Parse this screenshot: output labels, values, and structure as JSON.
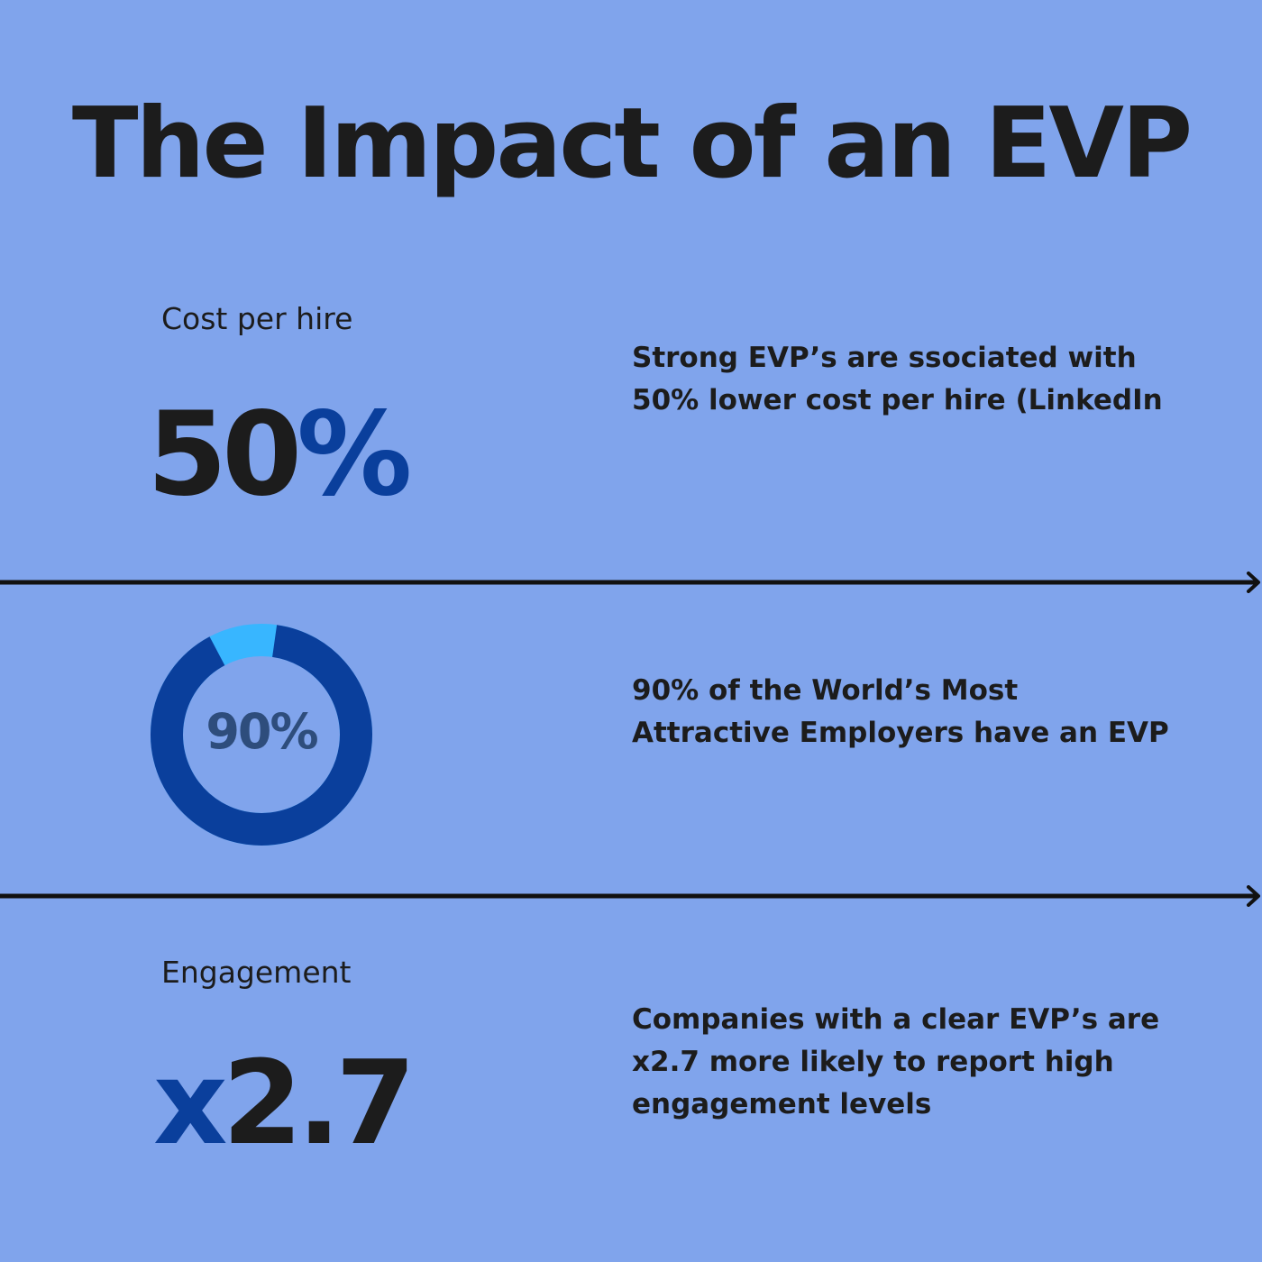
{
  "title": "The Impact of an EVP",
  "colors": {
    "background": "#80a4ec",
    "text": "#1c1c1c",
    "accent": "#0a3f9c",
    "donut_remainder": "#38b6ff",
    "donut_label": "#2e4d7c"
  },
  "sections": [
    {
      "label": "Cost per hire",
      "stat_number": "50",
      "stat_accent": "%",
      "description": "Strong EVP’s are ssociated with 50% lower cost per hire (LinkedIn"
    },
    {
      "donut_label": "90%",
      "donut_value_percent": 90,
      "description": "90% of the World’s Most Attractive Employers have an EVP"
    },
    {
      "label": "Engagement",
      "stat_accent": "x",
      "stat_number": "2.7",
      "description": "Companies with a clear EVP’s are x2.7 more likely to report high engagement levels"
    }
  ],
  "dividers": [
    {
      "icon": "arrow-right-icon"
    },
    {
      "icon": "arrow-right-icon"
    }
  ]
}
